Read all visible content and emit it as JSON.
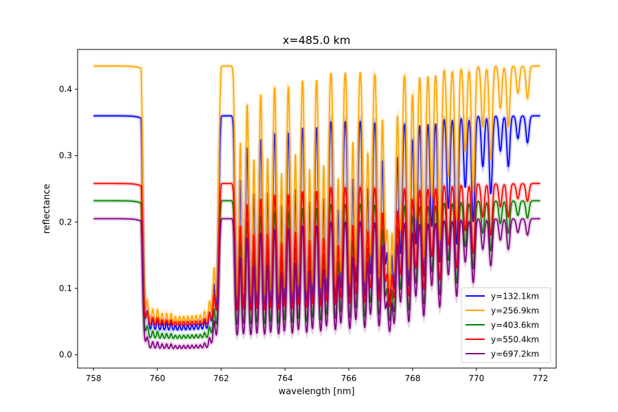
{
  "chart_data": {
    "type": "line",
    "title": "x=485.0 km",
    "xlabel": "wavelength [nm]",
    "ylabel": "reflectance",
    "xlim": [
      757.5,
      772.5
    ],
    "ylim": [
      -0.02,
      0.46
    ],
    "xticks": [
      758,
      760,
      762,
      764,
      766,
      768,
      770,
      772
    ],
    "yticks": [
      0.0,
      0.1,
      0.2,
      0.3,
      0.4
    ],
    "xtick_labels": [
      "758",
      "760",
      "762",
      "764",
      "766",
      "768",
      "770",
      "772"
    ],
    "ytick_labels": [
      "0.0",
      "0.1",
      "0.2",
      "0.3",
      "0.4"
    ],
    "grid": false,
    "legend_position": "lower-right",
    "series": [
      {
        "name": "y=132.1km",
        "color": "#0000ff",
        "continuum": 0.36,
        "floor": 0.03
      },
      {
        "name": "y=256.9km",
        "color": "#ffa500",
        "continuum": 0.435,
        "floor": 0.04
      },
      {
        "name": "y=403.6km",
        "color": "#008000",
        "continuum": 0.232,
        "floor": 0.02
      },
      {
        "name": "y=550.4km",
        "color": "#ff0000",
        "continuum": 0.258,
        "floor": 0.04
      },
      {
        "name": "y=697.2km",
        "color": "#800080",
        "continuum": 0.205,
        "floor": 0.005
      }
    ],
    "x_start": 758.0,
    "x_end": 772.0,
    "band_edge": 759.5,
    "band_min_region": [
      759.7,
      761.6
    ],
    "absorption_lines": [
      [
        759.62,
        0.85
      ],
      [
        759.78,
        0.9
      ],
      [
        759.93,
        0.92
      ],
      [
        760.08,
        0.95
      ],
      [
        760.22,
        0.96
      ],
      [
        760.36,
        0.97
      ],
      [
        760.5,
        0.97
      ],
      [
        760.63,
        0.97
      ],
      [
        760.76,
        0.96
      ],
      [
        760.89,
        0.95
      ],
      [
        761.02,
        0.94
      ],
      [
        761.15,
        0.92
      ],
      [
        761.28,
        0.9
      ],
      [
        761.41,
        0.88
      ],
      [
        761.55,
        0.85
      ],
      [
        761.7,
        0.82
      ],
      [
        761.85,
        0.78
      ],
      [
        762.5,
        0.95
      ],
      [
        762.7,
        0.92
      ],
      [
        762.93,
        0.94
      ],
      [
        763.12,
        0.9
      ],
      [
        763.36,
        0.93
      ],
      [
        763.55,
        0.88
      ],
      [
        763.8,
        0.92
      ],
      [
        763.98,
        0.85
      ],
      [
        764.23,
        0.9
      ],
      [
        764.42,
        0.82
      ],
      [
        764.68,
        0.88
      ],
      [
        764.86,
        0.8
      ],
      [
        765.12,
        0.85
      ],
      [
        765.3,
        0.75
      ],
      [
        765.58,
        0.82
      ],
      [
        765.75,
        0.7
      ],
      [
        766.03,
        0.8
      ],
      [
        766.22,
        0.65
      ],
      [
        766.5,
        0.78
      ],
      [
        766.68,
        0.58
      ],
      [
        766.95,
        0.75
      ],
      [
        767.15,
        0.5
      ],
      [
        767.28,
        0.85
      ],
      [
        767.42,
        0.7
      ],
      [
        767.62,
        0.45
      ],
      [
        767.88,
        0.68
      ],
      [
        768.1,
        0.4
      ],
      [
        768.35,
        0.6
      ],
      [
        768.6,
        0.32
      ],
      [
        768.85,
        0.5
      ],
      [
        769.12,
        0.25
      ],
      [
        769.38,
        0.4
      ],
      [
        769.65,
        0.18
      ],
      [
        769.9,
        0.3
      ],
      [
        770.2,
        0.12
      ],
      [
        770.45,
        0.2
      ],
      [
        770.75,
        0.08
      ],
      [
        771.0,
        0.12
      ],
      [
        771.3,
        0.05
      ],
      [
        771.6,
        0.06
      ]
    ]
  }
}
